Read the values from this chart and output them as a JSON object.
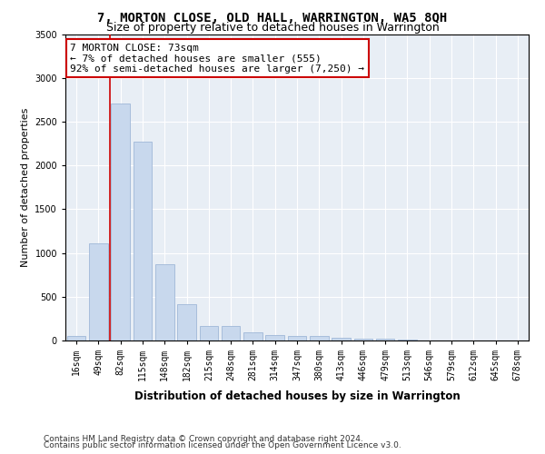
{
  "title": "7, MORTON CLOSE, OLD HALL, WARRINGTON, WA5 8QH",
  "subtitle": "Size of property relative to detached houses in Warrington",
  "xlabel": "Distribution of detached houses by size in Warrington",
  "ylabel": "Number of detached properties",
  "bar_color": "#c8d8ed",
  "bar_edge_color": "#a0b8d8",
  "categories": [
    "16sqm",
    "49sqm",
    "82sqm",
    "115sqm",
    "148sqm",
    "182sqm",
    "215sqm",
    "248sqm",
    "281sqm",
    "314sqm",
    "347sqm",
    "380sqm",
    "413sqm",
    "446sqm",
    "479sqm",
    "513sqm",
    "546sqm",
    "579sqm",
    "612sqm",
    "645sqm",
    "678sqm"
  ],
  "values": [
    50,
    1110,
    2710,
    2270,
    870,
    420,
    170,
    170,
    90,
    60,
    50,
    50,
    35,
    25,
    25,
    8,
    3,
    1,
    1,
    0,
    0
  ],
  "ylim": [
    0,
    3500
  ],
  "yticks": [
    0,
    500,
    1000,
    1500,
    2000,
    2500,
    3000,
    3500
  ],
  "vline_color": "#cc0000",
  "annotation_line1": "7 MORTON CLOSE: 73sqm",
  "annotation_line2": "← 7% of detached houses are smaller (555)",
  "annotation_line3": "92% of semi-detached houses are larger (7,250) →",
  "annotation_box_color": "#ffffff",
  "annotation_box_edge": "#cc0000",
  "footer_line1": "Contains HM Land Registry data © Crown copyright and database right 2024.",
  "footer_line2": "Contains public sector information licensed under the Open Government Licence v3.0.",
  "background_color": "#e8eef5",
  "grid_color": "#ffffff",
  "title_fontsize": 10,
  "subtitle_fontsize": 9,
  "tick_fontsize": 7,
  "ylabel_fontsize": 8,
  "xlabel_fontsize": 8.5,
  "annotation_fontsize": 8,
  "footer_fontsize": 6.5
}
